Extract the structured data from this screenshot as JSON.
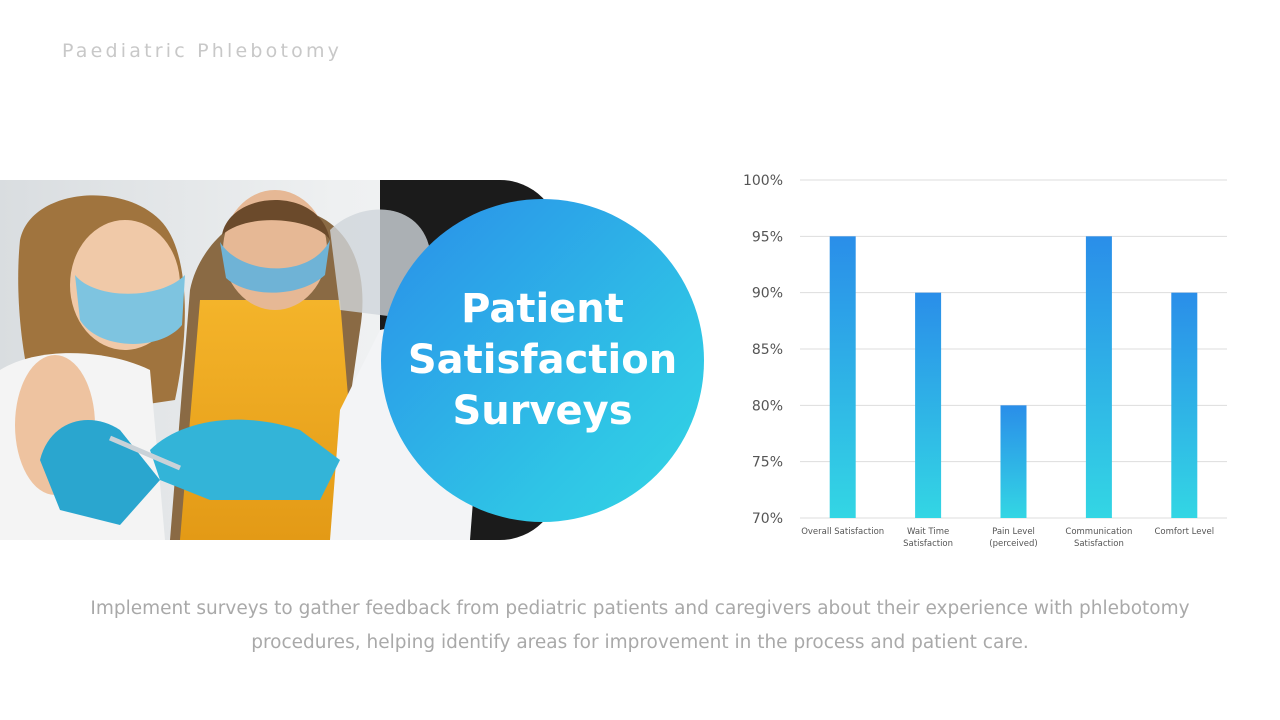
{
  "header": {
    "title": "Paediatric Phlebotomy"
  },
  "hero": {
    "title_lines": [
      "Patient",
      "Satisfaction",
      "Surveys"
    ]
  },
  "photo": {
    "description_icon": "photo-child-vaccination"
  },
  "colors": {
    "accent_top": "#2a8ee9",
    "accent_bottom": "#33d6e4",
    "grid": "#dddddd",
    "tick_text": "#555555"
  },
  "chart_data": {
    "type": "bar",
    "categories": [
      [
        "Overall Satisfaction"
      ],
      [
        "Wait Time",
        "Satisfaction"
      ],
      [
        "Pain Level",
        "(perceived)"
      ],
      [
        "Communication",
        "Satisfaction"
      ],
      [
        "Comfort Level"
      ]
    ],
    "values": [
      95,
      90,
      80,
      95,
      90
    ],
    "ylim": [
      70,
      100
    ],
    "yticks": [
      "70%",
      "75%",
      "80%",
      "85%",
      "90%",
      "95%",
      "100%"
    ],
    "ytick_values": [
      70,
      75,
      80,
      85,
      90,
      95,
      100
    ],
    "grid": true,
    "legend": "none"
  },
  "caption": {
    "line1": "Implement surveys to gather feedback from pediatric patients and caregivers about their experience with phlebotomy",
    "line2": "procedures, helping identify areas for improvement in the process and patient care."
  }
}
